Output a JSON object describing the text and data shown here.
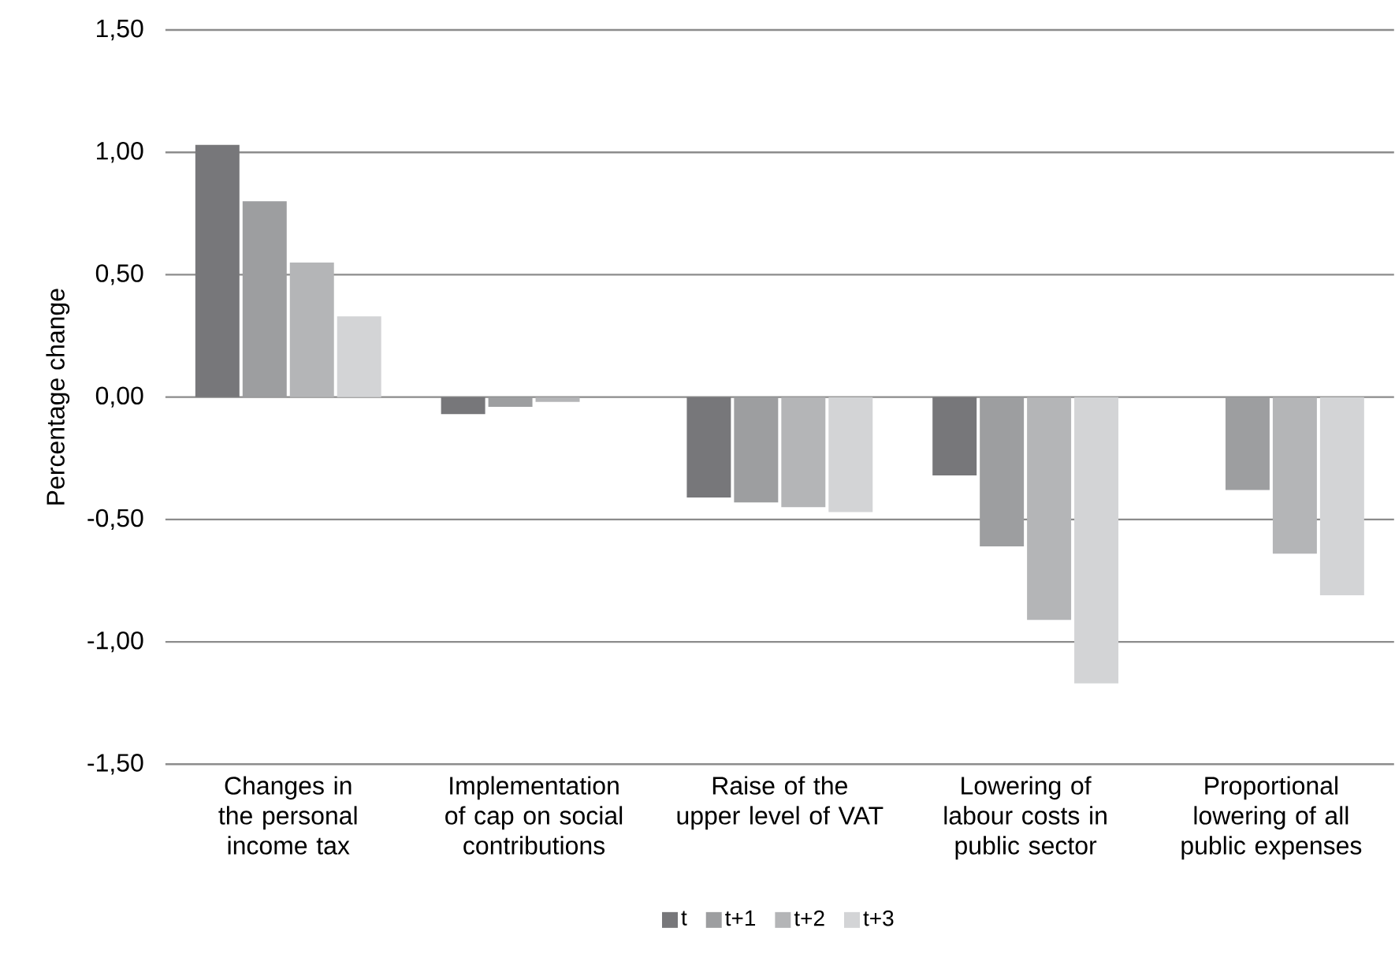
{
  "chart_data": {
    "type": "bar",
    "ylabel": "Percentage change",
    "categories": [
      "Changes in the personal income tax",
      "Implementation of cap on social contributions",
      "Raise of the upper level of VAT",
      "Lowering of labour costs in public sector",
      "Proportional lowering of all public expenses"
    ],
    "series": [
      {
        "name": "t",
        "color": "#77777a",
        "values": [
          1.03,
          -0.07,
          -0.41,
          -0.32,
          null
        ]
      },
      {
        "name": "t+1",
        "color": "#9d9ea0",
        "values": [
          0.8,
          -0.04,
          -0.43,
          -0.61,
          -0.38
        ]
      },
      {
        "name": "t+2",
        "color": "#b4b5b7",
        "values": [
          0.55,
          -0.02,
          -0.45,
          -0.91,
          -0.64
        ]
      },
      {
        "name": "t+3",
        "color": "#d3d4d6",
        "values": [
          0.33,
          null,
          -0.47,
          -1.17,
          -0.81
        ]
      }
    ],
    "ylim": [
      -1.5,
      1.5
    ],
    "yticks": [
      {
        "value": -1.5,
        "label": "-1,50"
      },
      {
        "value": -1.0,
        "label": "-1,00"
      },
      {
        "value": -0.5,
        "label": "-0,50"
      },
      {
        "value": 0,
        "label": "0,00"
      },
      {
        "value": 0.5,
        "label": "0,50"
      },
      {
        "value": 1.0,
        "label": "1,00"
      },
      {
        "value": 1.5,
        "label": "1,50"
      }
    ],
    "grid": "y",
    "legend": "bottom"
  }
}
